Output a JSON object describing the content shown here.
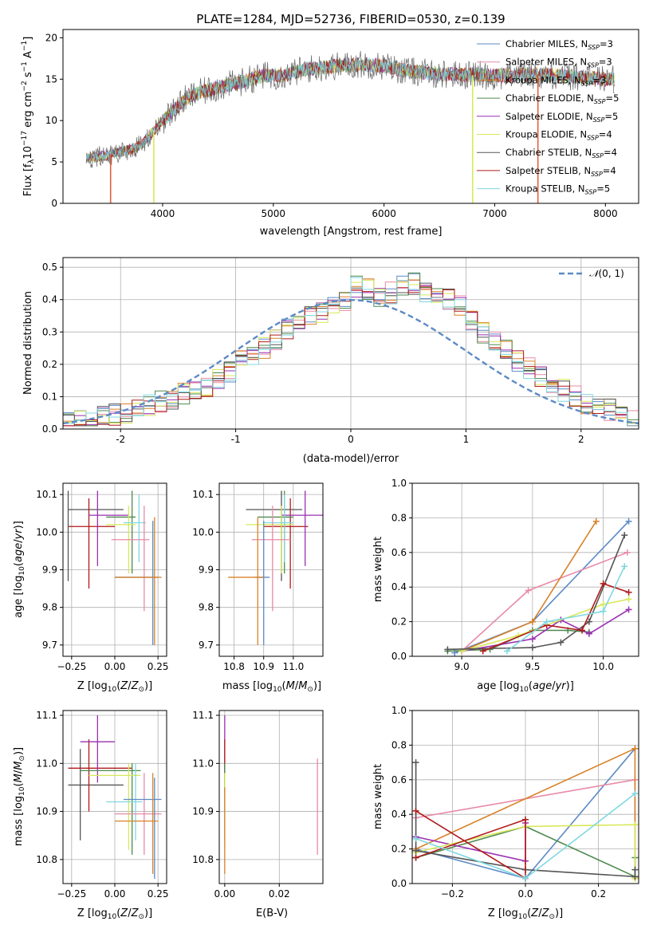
{
  "figure": {
    "title": "PLATE=1284, MJD=52736, FIBERID=0530, z=0.139"
  },
  "chart_data": [
    {
      "id": "spectrum",
      "type": "line",
      "xlabel": "wavelength [Angstrom, rest frame]",
      "ylabel": "Flux [f_λ10^-17 erg cm^-2 s^-1 A^-1]",
      "xlim": [
        3100,
        8300
      ],
      "ylim": [
        0,
        21
      ],
      "xticks": [
        4000,
        5000,
        6000,
        7000,
        8000
      ],
      "yticks": [
        0,
        5,
        10,
        15,
        20
      ],
      "grid": false,
      "legend_position": "top-right",
      "continuum": {
        "x": [
          3300,
          3500,
          3700,
          3800,
          3900,
          4000,
          4200,
          4300,
          4500,
          4700,
          4900,
          5100,
          5300,
          5500,
          5800,
          6000,
          6200,
          6500,
          6800,
          7000,
          7300,
          7600,
          8000,
          8100
        ],
        "y": [
          5.4,
          5.8,
          6.5,
          7.0,
          8.5,
          10.0,
          12.5,
          13.2,
          14.0,
          14.6,
          15.4,
          15.5,
          16.2,
          16.5,
          16.8,
          16.6,
          16.0,
          15.6,
          15.5,
          15.4,
          15.6,
          15.4,
          15.0,
          15.0
        ]
      },
      "series": [
        {
          "name": "Chabrier MILES, N_SSP=3",
          "label_main": "Chabrier MILES, N",
          "label_sub": "SSP",
          "label_tail": "=3",
          "color": "#5b8ac6"
        },
        {
          "name": "Salpeter MILES, N_SSP=3",
          "label_main": "Salpeter MILES, N",
          "label_sub": "SSP",
          "label_tail": "=3",
          "color": "#e88aa6"
        },
        {
          "name": "Kroupa MILES, N_SSP=3",
          "label_main": "Kroupa MILES, N",
          "label_sub": "SSP",
          "label_tail": "=3",
          "color": "#d98228"
        },
        {
          "name": "Chabrier ELODIE, N_SSP=5",
          "label_main": "Chabrier ELODIE, N",
          "label_sub": "SSP",
          "label_tail": "=5",
          "color": "#4f8a4f"
        },
        {
          "name": "Salpeter ELODIE, N_SSP=5",
          "label_main": "Salpeter ELODIE, N",
          "label_sub": "SSP",
          "label_tail": "=5",
          "color": "#9a2fb0"
        },
        {
          "name": "Kroupa ELODIE, N_SSP=4",
          "label_main": "Kroupa ELODIE, N",
          "label_sub": "SSP",
          "label_tail": "=4",
          "color": "#d8e85a"
        },
        {
          "name": "Chabrier STELIB, N_SSP=4",
          "label_main": "Chabrier STELIB, N",
          "label_sub": "SSP",
          "label_tail": "=4",
          "color": "#555555"
        },
        {
          "name": "Salpeter STELIB, N_SSP=4",
          "label_main": "Salpeter STELIB, N",
          "label_sub": "SSP",
          "label_tail": "=4",
          "color": "#b01a1a"
        },
        {
          "name": "Kroupa STELIB, N_SSP=5",
          "label_main": "Kroupa STELIB, N",
          "label_sub": "SSP",
          "label_tail": "=5",
          "color": "#7fd8e0"
        }
      ],
      "dropouts": [
        {
          "x": 3530,
          "color": "#e06040"
        },
        {
          "x": 3920,
          "color": "#d8e85a"
        },
        {
          "x": 6800,
          "color": "#d8e85a"
        },
        {
          "x": 7390,
          "color": "#e06040"
        }
      ]
    },
    {
      "id": "residuals",
      "type": "histogram",
      "xlabel": "(data-model)/error",
      "ylabel": "Normed distribution",
      "xlim": [
        -2.5,
        2.5
      ],
      "ylim": [
        0,
        0.53
      ],
      "xticks": [
        -2,
        -1,
        0,
        1,
        2
      ],
      "yticks": [
        0.0,
        0.1,
        0.2,
        0.3,
        0.4,
        0.5
      ],
      "grid": true,
      "legend_position": "top-right",
      "legend_label": "N(0, 1)",
      "bin_edges_start": -2.5,
      "bin_width": 0.1,
      "base_profile": [
        0.02,
        0.025,
        0.03,
        0.04,
        0.045,
        0.05,
        0.06,
        0.075,
        0.085,
        0.09,
        0.11,
        0.12,
        0.13,
        0.15,
        0.18,
        0.21,
        0.23,
        0.25,
        0.28,
        0.31,
        0.33,
        0.35,
        0.36,
        0.38,
        0.4,
        0.44,
        0.43,
        0.41,
        0.42,
        0.44,
        0.45,
        0.42,
        0.41,
        0.4,
        0.38,
        0.33,
        0.3,
        0.27,
        0.24,
        0.21,
        0.19,
        0.16,
        0.14,
        0.12,
        0.1,
        0.08,
        0.07,
        0.06,
        0.05,
        0.03
      ],
      "gaussian_color": "#5b8ac6"
    },
    {
      "id": "age_vs_Z",
      "type": "errorbar",
      "xlabel": "Z [log10(Z/Z_sun)]",
      "ylabel": "age [log10(age/yr)]",
      "xlim": [
        -0.3,
        0.3
      ],
      "ylim": [
        9.67,
        10.13
      ],
      "xticks": [
        -0.25,
        0.0,
        0.25
      ],
      "xtick_labels": [
        "−0.25",
        "0.00",
        "0.25"
      ],
      "yticks": [
        9.7,
        9.8,
        9.9,
        10.0,
        10.1
      ],
      "grid": true,
      "points": [
        {
          "color": "#555555",
          "x": -0.27,
          "xlo": -0.27,
          "xhi": 0.05,
          "y": 10.06,
          "ylo": 9.87,
          "yhi": 10.11
        },
        {
          "color": "#b01a1a",
          "x": -0.15,
          "xlo": -0.27,
          "xhi": 0.0,
          "y": 10.015,
          "ylo": 9.85,
          "yhi": 10.09
        },
        {
          "color": "#9a2fb0",
          "x": -0.1,
          "xlo": -0.15,
          "xhi": 0.08,
          "y": 10.045,
          "ylo": 9.91,
          "yhi": 10.11
        },
        {
          "color": "#4f8a4f",
          "x": 0.1,
          "xlo": -0.05,
          "xhi": 0.12,
          "y": 10.04,
          "ylo": 9.89,
          "yhi": 10.11
        },
        {
          "color": "#d8e85a",
          "x": 0.08,
          "xlo": -0.05,
          "xhi": 0.12,
          "y": 10.02,
          "ylo": 9.89,
          "yhi": 10.07
        },
        {
          "color": "#7fd8e0",
          "x": 0.14,
          "xlo": 0.05,
          "xhi": 0.18,
          "y": 10.025,
          "ylo": 9.92,
          "yhi": 10.1
        },
        {
          "color": "#e88aa6",
          "x": 0.17,
          "xlo": -0.02,
          "xhi": 0.2,
          "y": 9.98,
          "ylo": 9.79,
          "yhi": 10.07
        },
        {
          "color": "#5b8ac6",
          "x": 0.22,
          "xlo": 0.0,
          "xhi": 0.25,
          "y": 9.88,
          "ylo": 9.7,
          "yhi": 10.03
        },
        {
          "color": "#d98228",
          "x": 0.23,
          "xlo": 0.0,
          "xhi": 0.27,
          "y": 9.88,
          "ylo": 9.7,
          "yhi": 10.04
        }
      ]
    },
    {
      "id": "age_vs_mass",
      "type": "errorbar",
      "xlabel": "mass [log10(M/M_sun)]",
      "ylabel": "",
      "xlim": [
        10.75,
        11.1
      ],
      "ylim": [
        9.67,
        10.13
      ],
      "xticks": [
        10.8,
        10.9,
        11.0
      ],
      "xtick_labels": [
        "10.8",
        "10.9",
        "11.0"
      ],
      "yticks": [
        9.7,
        9.8,
        9.9,
        10.0,
        10.1
      ],
      "grid": true,
      "points": [
        {
          "color": "#555555",
          "x": 10.96,
          "xlo": 10.84,
          "xhi": 11.03,
          "y": 10.06,
          "ylo": 9.87,
          "yhi": 10.11
        },
        {
          "color": "#b01a1a",
          "x": 10.99,
          "xlo": 10.9,
          "xhi": 11.05,
          "y": 10.015,
          "ylo": 9.85,
          "yhi": 10.09
        },
        {
          "color": "#9a2fb0",
          "x": 11.04,
          "xlo": 10.96,
          "xhi": 11.1,
          "y": 10.045,
          "ylo": 9.91,
          "yhi": 10.11
        },
        {
          "color": "#4f8a4f",
          "x": 10.97,
          "xlo": 10.88,
          "xhi": 11.0,
          "y": 10.04,
          "ylo": 9.89,
          "yhi": 10.11
        },
        {
          "color": "#d8e85a",
          "x": 10.96,
          "xlo": 10.84,
          "xhi": 11.0,
          "y": 10.02,
          "ylo": 9.89,
          "yhi": 10.07
        },
        {
          "color": "#7fd8e0",
          "x": 10.97,
          "xlo": 10.9,
          "xhi": 11.0,
          "y": 10.025,
          "ylo": 9.92,
          "yhi": 10.1
        },
        {
          "color": "#e88aa6",
          "x": 10.93,
          "xlo": 10.86,
          "xhi": 10.99,
          "y": 9.98,
          "ylo": 9.79,
          "yhi": 10.07
        },
        {
          "color": "#5b8ac6",
          "x": 10.9,
          "xlo": 10.87,
          "xhi": 10.92,
          "y": 9.88,
          "ylo": 9.7,
          "yhi": 10.03
        },
        {
          "color": "#d98228",
          "x": 10.88,
          "xlo": 10.78,
          "xhi": 10.9,
          "y": 9.88,
          "ylo": 9.7,
          "yhi": 10.04
        }
      ]
    },
    {
      "id": "massweight_vs_age",
      "type": "line",
      "xlabel": "age [log10(age/yr)]",
      "ylabel": "mass weight",
      "xlim": [
        8.65,
        10.25
      ],
      "ylim": [
        0.0,
        1.0
      ],
      "xticks": [
        9.0,
        9.5,
        10.0
      ],
      "xtick_labels": [
        "9.0",
        "9.5",
        "10.0"
      ],
      "yticks": [
        0.0,
        0.2,
        0.4,
        0.6,
        0.8,
        1.0
      ],
      "grid": true,
      "series": [
        {
          "color": "#5b8ac6",
          "x": [
            8.95,
            9.5,
            10.18
          ],
          "y": [
            0.02,
            0.2,
            0.78
          ]
        },
        {
          "color": "#e88aa6",
          "x": [
            9.0,
            9.47,
            10.17
          ],
          "y": [
            0.03,
            0.38,
            0.6
          ]
        },
        {
          "color": "#d98228",
          "x": [
            9.0,
            9.5,
            9.95
          ],
          "y": [
            0.03,
            0.2,
            0.78
          ]
        },
        {
          "color": "#4f8a4f",
          "x": [
            8.9,
            9.2,
            9.5,
            9.75,
            9.9
          ],
          "y": [
            0.03,
            0.04,
            0.15,
            0.15,
            0.14
          ]
        },
        {
          "color": "#9a2fb0",
          "x": [
            9.0,
            9.5,
            9.7,
            9.9,
            10.18
          ],
          "y": [
            0.03,
            0.1,
            0.21,
            0.13,
            0.27
          ]
        },
        {
          "color": "#d8e85a",
          "x": [
            9.0,
            9.4,
            9.6,
            10.0,
            10.18
          ],
          "y": [
            0.03,
            0.12,
            0.18,
            0.3,
            0.33
          ]
        },
        {
          "color": "#555555",
          "x": [
            8.9,
            9.5,
            9.7,
            9.9,
            10.15
          ],
          "y": [
            0.04,
            0.05,
            0.08,
            0.2,
            0.7
          ]
        },
        {
          "color": "#b01a1a",
          "x": [
            9.15,
            9.6,
            9.85,
            10.0,
            10.18
          ],
          "y": [
            0.03,
            0.18,
            0.15,
            0.42,
            0.37
          ]
        },
        {
          "color": "#7fd8e0",
          "x": [
            9.32,
            9.6,
            10.0,
            10.15
          ],
          "y": [
            0.03,
            0.2,
            0.26,
            0.52
          ]
        }
      ]
    },
    {
      "id": "mass_vs_Z",
      "type": "errorbar",
      "xlabel": "Z [log10(Z/Z_sun)]",
      "ylabel": "mass [log10(M/M_sun)]",
      "xlim": [
        -0.3,
        0.3
      ],
      "ylim": [
        10.75,
        11.11
      ],
      "xticks": [
        -0.25,
        0.0,
        0.25
      ],
      "xtick_labels": [
        "−0.25",
        "0.00",
        "0.25"
      ],
      "yticks": [
        10.8,
        10.9,
        11.0,
        11.1
      ],
      "grid": true,
      "points": [
        {
          "color": "#555555",
          "x": -0.2,
          "xlo": -0.27,
          "xhi": 0.05,
          "y": 10.955,
          "ylo": 10.84,
          "yhi": 11.03
        },
        {
          "color": "#b01a1a",
          "x": -0.15,
          "xlo": -0.27,
          "xhi": 0.1,
          "y": 10.99,
          "ylo": 10.9,
          "yhi": 11.05
        },
        {
          "color": "#9a2fb0",
          "x": -0.1,
          "xlo": -0.2,
          "xhi": 0.0,
          "y": 11.045,
          "ylo": 10.96,
          "yhi": 11.1
        },
        {
          "color": "#4f8a4f",
          "x": 0.1,
          "xlo": -0.2,
          "xhi": 0.15,
          "y": 10.985,
          "ylo": 10.81,
          "yhi": 11.0
        },
        {
          "color": "#d8e85a",
          "x": 0.08,
          "xlo": -0.15,
          "xhi": 0.15,
          "y": 10.975,
          "ylo": 10.82,
          "yhi": 11.0
        },
        {
          "color": "#7fd8e0",
          "x": 0.12,
          "xlo": -0.05,
          "xhi": 0.16,
          "y": 10.92,
          "ylo": 10.84,
          "yhi": 11.0
        },
        {
          "color": "#e88aa6",
          "x": 0.17,
          "xlo": 0.0,
          "xhi": 0.27,
          "y": 10.895,
          "ylo": 10.81,
          "yhi": 10.98
        },
        {
          "color": "#5b8ac6",
          "x": 0.23,
          "xlo": 0.05,
          "xhi": 0.27,
          "y": 10.925,
          "ylo": 10.76,
          "yhi": 10.97
        },
        {
          "color": "#d98228",
          "x": 0.22,
          "xlo": 0.0,
          "xhi": 0.25,
          "y": 10.88,
          "ylo": 10.77,
          "yhi": 10.98
        }
      ]
    },
    {
      "id": "mass_vs_EBV",
      "type": "errorbar",
      "xlabel": "E(B-V)",
      "ylabel": "",
      "xlim": [
        -0.002,
        0.036
      ],
      "ylim": [
        10.75,
        11.11
      ],
      "xticks": [
        0.0,
        0.02
      ],
      "xtick_labels": [
        "0.00",
        "0.02"
      ],
      "yticks": [
        10.8,
        10.9,
        11.0,
        11.1
      ],
      "grid": true,
      "points": [
        {
          "color": "#9a2fb0",
          "x": 0.0,
          "xlo": 0.0,
          "xhi": 0.0,
          "y": 11.045,
          "ylo": 10.96,
          "yhi": 11.1
        },
        {
          "color": "#b01a1a",
          "x": 0.0,
          "xlo": 0.0,
          "xhi": 0.0,
          "y": 10.99,
          "ylo": 10.9,
          "yhi": 11.05
        },
        {
          "color": "#4f8a4f",
          "x": 0.0,
          "xlo": 0.0,
          "xhi": 0.0,
          "y": 10.955,
          "ylo": 10.84,
          "yhi": 11.0
        },
        {
          "color": "#d8e85a",
          "x": 0.0,
          "xlo": 0.0,
          "xhi": 0.0,
          "y": 10.9,
          "ylo": 10.82,
          "yhi": 10.98
        },
        {
          "color": "#d98228",
          "x": 0.0,
          "xlo": 0.0,
          "xhi": 0.0,
          "y": 10.85,
          "ylo": 10.77,
          "yhi": 10.95
        },
        {
          "color": "#e88aa6",
          "x": 0.034,
          "xlo": 0.034,
          "xhi": 0.034,
          "y": 10.9,
          "ylo": 10.81,
          "yhi": 11.01
        }
      ]
    },
    {
      "id": "massweight_vs_Z",
      "type": "line",
      "xlabel": "Z [log10(Z/Z_sun)]",
      "ylabel": "mass weight",
      "xlim": [
        -0.31,
        0.31
      ],
      "ylim": [
        0.0,
        1.0
      ],
      "xticks": [
        -0.2,
        0.0,
        0.2
      ],
      "xtick_labels": [
        "−0.2",
        "0.0",
        "0.2"
      ],
      "yticks": [
        0.0,
        0.2,
        0.4,
        0.6,
        0.8,
        1.0
      ],
      "grid": true,
      "series": [
        {
          "color": "#5b8ac6",
          "x": [
            -0.3,
            0.0,
            0.3
          ],
          "y": [
            0.2,
            0.03,
            0.78
          ]
        },
        {
          "color": "#e88aa6",
          "x": [
            -0.3,
            0.3,
            0.3
          ],
          "y": [
            0.38,
            0.6,
            0.03
          ]
        },
        {
          "color": "#d98228",
          "x": [
            -0.3,
            0.3,
            0.3
          ],
          "y": [
            0.2,
            0.78,
            0.03
          ]
        },
        {
          "color": "#4f8a4f",
          "x": [
            -0.3,
            0.0,
            0.3,
            0.3
          ],
          "y": [
            0.15,
            0.33,
            0.04,
            0.15
          ]
        },
        {
          "color": "#9a2fb0",
          "x": [
            -0.3,
            0.0,
            0.0
          ],
          "y": [
            0.27,
            0.13,
            0.35
          ]
        },
        {
          "color": "#d8e85a",
          "x": [
            -0.3,
            0.0,
            0.3,
            0.3
          ],
          "y": [
            0.18,
            0.33,
            0.34,
            0.03
          ]
        },
        {
          "color": "#555555",
          "x": [
            -0.3,
            -0.3,
            0.0,
            0.3,
            0.3
          ],
          "y": [
            0.7,
            0.19,
            0.08,
            0.04,
            0.08
          ]
        },
        {
          "color": "#b01a1a",
          "x": [
            -0.3,
            0.0,
            0.0,
            -0.3
          ],
          "y": [
            0.42,
            0.03,
            0.37,
            0.15
          ]
        },
        {
          "color": "#7fd8e0",
          "x": [
            -0.3,
            0.0,
            0.3
          ],
          "y": [
            0.26,
            0.03,
            0.52
          ]
        }
      ]
    }
  ]
}
